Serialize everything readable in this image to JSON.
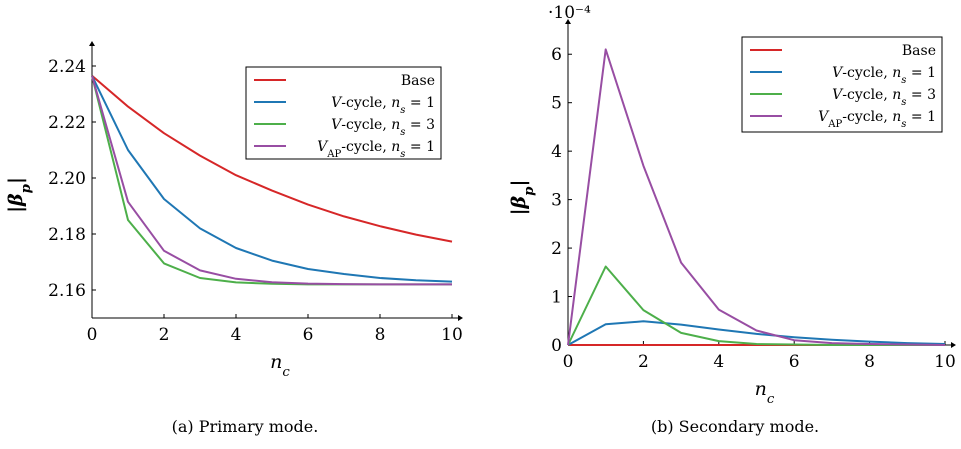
{
  "chart_data": [
    {
      "type": "line",
      "caption": "(a) Primary mode.",
      "xlabel": "n_c",
      "ylabel": "|β_p|",
      "xlim": [
        0,
        10
      ],
      "ylim": [
        2.15,
        2.245
      ],
      "xticks": [
        0,
        2,
        4,
        6,
        8,
        10
      ],
      "yticks": [
        2.16,
        2.18,
        2.2,
        2.22,
        2.24
      ],
      "ytick_labels": [
        "2.16",
        "2.18",
        "2.20",
        "2.22",
        "2.24"
      ],
      "legend_position": "top-right",
      "grid": false,
      "series": [
        {
          "name": "Base",
          "color": "#d62728",
          "x": [
            0,
            1,
            2,
            3,
            4,
            5,
            6,
            7,
            8,
            9,
            10
          ],
          "y": [
            2.2365,
            2.2255,
            2.216,
            2.208,
            2.201,
            2.1955,
            2.1905,
            2.1863,
            2.1828,
            2.1798,
            2.1773
          ]
        },
        {
          "name": "V-cycle, n_s = 1",
          "color": "#1f77b4",
          "x": [
            0,
            1,
            2,
            3,
            4,
            5,
            6,
            7,
            8,
            9,
            10
          ],
          "y": [
            2.2365,
            2.21,
            2.1925,
            2.182,
            2.175,
            2.1705,
            2.1675,
            2.1657,
            2.1643,
            2.1635,
            2.163
          ]
        },
        {
          "name": "V-cycle, n_s = 3",
          "color": "#4daf4a",
          "x": [
            0,
            1,
            2,
            3,
            4,
            5,
            6,
            7,
            8,
            9,
            10
          ],
          "y": [
            2.2365,
            2.185,
            2.1695,
            2.1643,
            2.1627,
            2.1622,
            2.162,
            2.162,
            2.162,
            2.162,
            2.162
          ]
        },
        {
          "name": "V_AP-cycle, n_s = 1",
          "color": "#984ea3",
          "x": [
            0,
            1,
            2,
            3,
            4,
            5,
            6,
            7,
            8,
            9,
            10
          ],
          "y": [
            2.2365,
            2.1915,
            2.174,
            2.167,
            2.164,
            2.1628,
            2.1623,
            2.1621,
            2.162,
            2.162,
            2.162
          ]
        }
      ]
    },
    {
      "type": "line",
      "caption": "(b) Secondary mode.",
      "xlabel": "n_c",
      "ylabel": "|β_p|",
      "y_multiplier": "·10⁻⁴",
      "xlim": [
        0,
        10
      ],
      "ylim": [
        0,
        6.5
      ],
      "xticks": [
        0,
        2,
        4,
        6,
        8,
        10
      ],
      "yticks": [
        0,
        1,
        2,
        3,
        4,
        5,
        6
      ],
      "ytick_labels": [
        "0",
        "1",
        "2",
        "3",
        "4",
        "5",
        "6"
      ],
      "legend_position": "top-right",
      "grid": false,
      "series": [
        {
          "name": "Base",
          "color": "#d62728",
          "x": [
            0,
            1,
            2,
            3,
            4,
            5,
            6,
            7,
            8,
            9,
            10
          ],
          "y": [
            0,
            0,
            0,
            0,
            0,
            0,
            0,
            0,
            0,
            0,
            0
          ]
        },
        {
          "name": "V-cycle, n_s = 1",
          "color": "#1f77b4",
          "x": [
            0,
            1,
            2,
            3,
            4,
            5,
            6,
            7,
            8,
            9,
            10
          ],
          "y": [
            0,
            0.43,
            0.49,
            0.42,
            0.32,
            0.23,
            0.16,
            0.11,
            0.07,
            0.04,
            0.02
          ]
        },
        {
          "name": "V-cycle, n_s = 3",
          "color": "#4daf4a",
          "x": [
            0,
            1,
            2,
            3,
            4,
            5,
            6,
            7,
            8,
            9,
            10
          ],
          "y": [
            0,
            1.62,
            0.72,
            0.25,
            0.08,
            0.02,
            0.01,
            0,
            0,
            0,
            0
          ]
        },
        {
          "name": "V_AP-cycle, n_s = 1",
          "color": "#984ea3",
          "x": [
            0,
            1,
            2,
            3,
            4,
            5,
            6,
            7,
            8,
            9,
            10
          ],
          "y": [
            0,
            6.1,
            3.7,
            1.7,
            0.73,
            0.3,
            0.1,
            0.04,
            0.02,
            0.01,
            0
          ]
        }
      ]
    }
  ]
}
